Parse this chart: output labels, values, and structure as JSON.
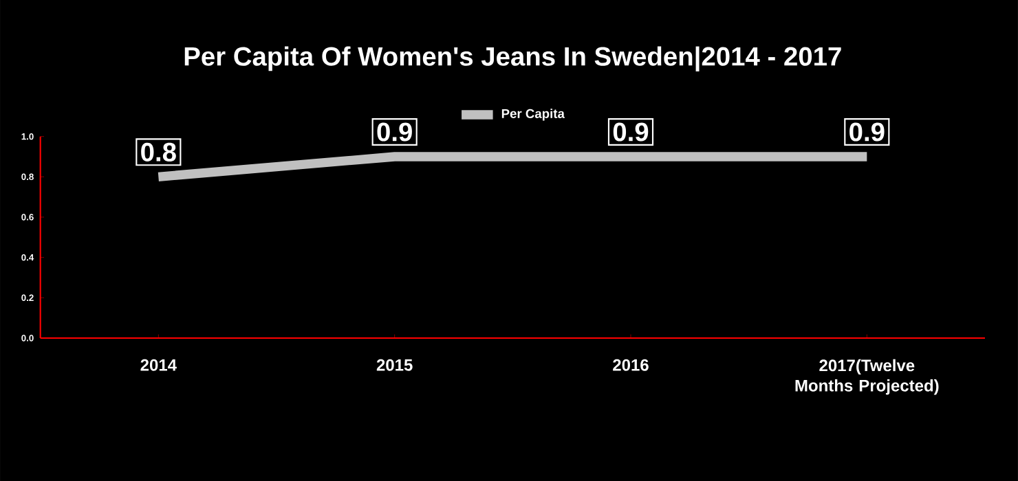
{
  "chart_data": {
    "type": "line",
    "title": "Per Capita Of Women's Jeans In Sweden|2014 - 2017",
    "categories": [
      "2014",
      "2015",
      "2016",
      "2017(Twelve Months Projected)"
    ],
    "series": [
      {
        "name": "Per Capita",
        "color": "#c0c0c0",
        "values": [
          0.8,
          0.9,
          0.9,
          0.9
        ]
      }
    ],
    "ylim": [
      0,
      1
    ],
    "yticks": [
      {
        "value": 0,
        "label": "0.0"
      },
      {
        "value": 0.2,
        "label": "0.2"
      },
      {
        "value": 0.4,
        "label": "0.4"
      },
      {
        "value": 0.6,
        "label": "0.6"
      },
      {
        "value": 0.8,
        "label": "0.8"
      },
      {
        "value": 1,
        "label": "1.0"
      }
    ],
    "data_labels": true,
    "legend": "top",
    "grid": false,
    "marker": "none",
    "line_style": "solid"
  }
}
